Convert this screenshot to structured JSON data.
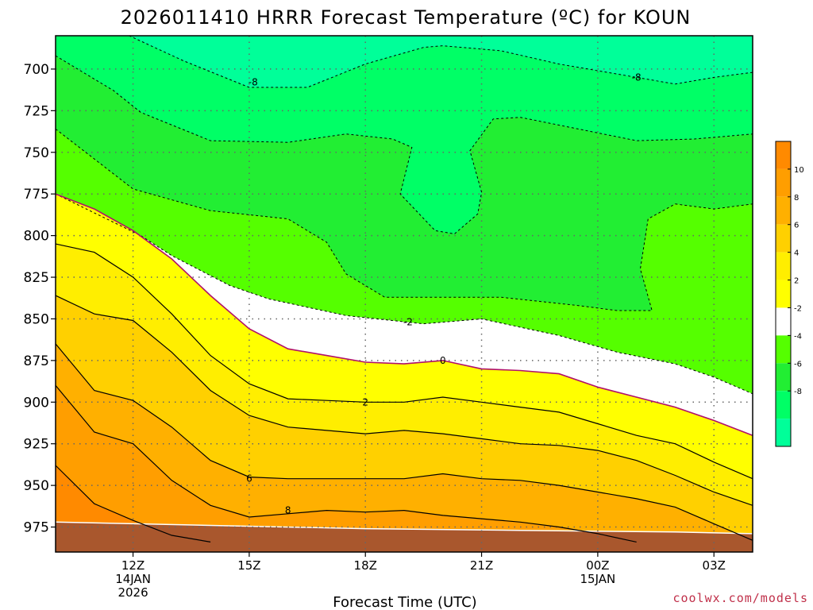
{
  "chart_data": {
    "type": "contour",
    "title": "2026011410 HRRR Forecast Temperature (ºC) for KOUN",
    "xlabel": "Forecast Time (UTC)",
    "ylabel": "",
    "y_ticks": [
      "700",
      "725",
      "750",
      "775",
      "800",
      "825",
      "850",
      "875",
      "900",
      "925",
      "950",
      "975"
    ],
    "y_values": [
      700,
      725,
      750,
      775,
      800,
      825,
      850,
      875,
      900,
      925,
      950,
      975
    ],
    "ylim": [
      680,
      990
    ],
    "y_inverted": true,
    "x_ticks": [
      {
        "label": "12Z",
        "sub": [
          "14JAN",
          "2026"
        ],
        "hour": 12
      },
      {
        "label": "15Z",
        "sub": [],
        "hour": 15
      },
      {
        "label": "18Z",
        "sub": [],
        "hour": 18
      },
      {
        "label": "21Z",
        "sub": [],
        "hour": 21
      },
      {
        "label": "00Z",
        "sub": [
          "15JAN"
        ],
        "hour": 24
      },
      {
        "label": "03Z",
        "sub": [],
        "hour": 27
      }
    ],
    "xlim": [
      10,
      28
    ],
    "grid": true,
    "colorbar": {
      "ticks": [
        "10",
        "8",
        "6",
        "4",
        "2",
        "-2",
        "-4",
        "-6",
        "-8"
      ],
      "bins": [
        {
          "range": "above 10",
          "color": "#ff8a00"
        },
        {
          "range": "8 to 10",
          "color": "#ff9e00"
        },
        {
          "range": "6 to 8",
          "color": "#ffb000"
        },
        {
          "range": "4 to 6",
          "color": "#ffd000"
        },
        {
          "range": "2 to 4",
          "color": "#ffee00"
        },
        {
          "range": "0 to 2",
          "color": "#ffff00"
        },
        {
          "range": "-2 to 0",
          "color": "#ffffff"
        },
        {
          "range": "-4 to -2",
          "color": "#55ff00"
        },
        {
          "range": "-6 to -4",
          "color": "#22ee33"
        },
        {
          "range": "-8 to -6",
          "color": "#00ff66"
        },
        {
          "range": "below -8",
          "color": "#00ff99"
        }
      ]
    },
    "contour_labels": [
      {
        "text": "-8",
        "hour": 15.1,
        "p": 708
      },
      {
        "text": "-8",
        "hour": 25.0,
        "p": 705
      },
      {
        "text": "-2",
        "hour": 19.1,
        "p": 852
      },
      {
        "text": "0",
        "hour": 20.0,
        "p": 875
      },
      {
        "text": "2",
        "hour": 18.0,
        "p": 900
      },
      {
        "text": "6",
        "hour": 15.0,
        "p": 946
      },
      {
        "text": "8",
        "hour": 16.0,
        "p": 965
      }
    ],
    "contours": [
      {
        "level": -8,
        "style": "dash",
        "points": [
          [
            10.3,
            680
          ],
          [
            11.9,
            680
          ],
          [
            13.3,
            695
          ],
          [
            15.0,
            711
          ],
          [
            16.5,
            711
          ],
          [
            18.0,
            697
          ],
          [
            19.5,
            687
          ],
          [
            20.0,
            686
          ],
          [
            21.5,
            689
          ],
          [
            23.0,
            697
          ],
          [
            24.5,
            703
          ],
          [
            26.0,
            709
          ],
          [
            27.0,
            705
          ],
          [
            28.0,
            702
          ]
        ]
      },
      {
        "level": -6,
        "style": "dash",
        "points": [
          [
            10.0,
            692
          ],
          [
            11.5,
            713
          ],
          [
            12.2,
            726
          ],
          [
            14.0,
            743
          ],
          [
            16.0,
            744
          ],
          [
            17.5,
            739
          ],
          [
            18.7,
            742
          ],
          [
            19.2,
            747
          ],
          [
            18.9,
            775
          ],
          [
            19.8,
            797
          ],
          [
            20.3,
            799
          ],
          [
            20.9,
            787
          ],
          [
            21.0,
            774
          ],
          [
            20.7,
            749
          ],
          [
            21.3,
            730
          ],
          [
            22.0,
            729
          ],
          [
            23.5,
            736
          ],
          [
            25.0,
            743
          ],
          [
            26.5,
            742
          ],
          [
            28.0,
            739
          ]
        ]
      },
      {
        "level": -4,
        "style": "dash",
        "points": [
          [
            10.0,
            736
          ],
          [
            12.0,
            772
          ],
          [
            14.0,
            785
          ],
          [
            16.0,
            790
          ],
          [
            17.0,
            804
          ],
          [
            17.5,
            823
          ],
          [
            18.5,
            837
          ],
          [
            20.0,
            837
          ],
          [
            21.5,
            837
          ],
          [
            23.5,
            842
          ],
          [
            24.5,
            845
          ],
          [
            25.4,
            845
          ],
          [
            25.1,
            820
          ],
          [
            25.3,
            790
          ],
          [
            26.0,
            781
          ],
          [
            27.0,
            784
          ],
          [
            28.0,
            781
          ]
        ]
      },
      {
        "level": -2,
        "style": "dash",
        "points": [
          [
            10.0,
            775
          ],
          [
            12.2,
            800
          ],
          [
            13.0,
            812
          ],
          [
            14.5,
            830
          ],
          [
            15.5,
            838
          ],
          [
            17.5,
            848
          ],
          [
            19.5,
            853
          ],
          [
            21.0,
            850
          ],
          [
            23.0,
            860
          ],
          [
            24.5,
            870
          ],
          [
            26.0,
            877
          ],
          [
            27.0,
            885
          ],
          [
            28.0,
            895
          ]
        ]
      },
      {
        "level": 0,
        "style": "magenta",
        "points": [
          [
            10.0,
            775
          ],
          [
            11.0,
            784
          ],
          [
            12.0,
            797
          ],
          [
            13.0,
            814
          ],
          [
            14.0,
            836
          ],
          [
            15.0,
            856
          ],
          [
            16.0,
            868
          ],
          [
            17.0,
            872
          ],
          [
            18.0,
            876
          ],
          [
            19.0,
            877
          ],
          [
            20.0,
            875
          ],
          [
            21.0,
            880
          ],
          [
            22.0,
            881
          ],
          [
            23.0,
            883
          ],
          [
            24.0,
            891
          ],
          [
            25.0,
            897
          ],
          [
            26.0,
            903
          ],
          [
            27.0,
            911
          ],
          [
            28.0,
            920
          ]
        ]
      },
      {
        "level": 2,
        "style": "solid",
        "points": [
          [
            10.0,
            805
          ],
          [
            11.0,
            810
          ],
          [
            12.0,
            825
          ],
          [
            13.0,
            847
          ],
          [
            14.0,
            872
          ],
          [
            15.0,
            889
          ],
          [
            16.0,
            898
          ],
          [
            17.0,
            899
          ],
          [
            18.0,
            900
          ],
          [
            19.0,
            900
          ],
          [
            20.0,
            897
          ],
          [
            21.0,
            900
          ],
          [
            22.0,
            903
          ],
          [
            23.0,
            906
          ],
          [
            24.0,
            913
          ],
          [
            25.0,
            920
          ],
          [
            26.0,
            925
          ],
          [
            27.0,
            936
          ],
          [
            28.0,
            946
          ]
        ]
      },
      {
        "level": 4,
        "style": "solid",
        "points": [
          [
            10.0,
            836
          ],
          [
            11.0,
            847
          ],
          [
            12.0,
            851
          ],
          [
            13.0,
            870
          ],
          [
            14.0,
            893
          ],
          [
            15.0,
            908
          ],
          [
            16.0,
            915
          ],
          [
            17.0,
            917
          ],
          [
            18.0,
            919
          ],
          [
            19.0,
            917
          ],
          [
            20.0,
            919
          ],
          [
            21.0,
            922
          ],
          [
            22.0,
            925
          ],
          [
            23.0,
            926
          ],
          [
            24.0,
            929
          ],
          [
            25.0,
            935
          ],
          [
            26.0,
            944
          ],
          [
            27.0,
            954
          ],
          [
            28.0,
            962
          ]
        ]
      },
      {
        "level": 6,
        "style": "solid",
        "points": [
          [
            10.0,
            865
          ],
          [
            11.0,
            893
          ],
          [
            12.0,
            899
          ],
          [
            13.0,
            915
          ],
          [
            14.0,
            935
          ],
          [
            15.0,
            945
          ],
          [
            16.0,
            946
          ],
          [
            17.0,
            946
          ],
          [
            18.0,
            946
          ],
          [
            19.0,
            946
          ],
          [
            20.0,
            943
          ],
          [
            21.0,
            946
          ],
          [
            22.0,
            947
          ],
          [
            23.0,
            950
          ],
          [
            24.0,
            954
          ],
          [
            25.0,
            958
          ],
          [
            26.0,
            963
          ],
          [
            27.0,
            973
          ],
          [
            28.0,
            983
          ]
        ]
      },
      {
        "level": 8,
        "style": "solid",
        "points": [
          [
            10.0,
            890
          ],
          [
            11.0,
            918
          ],
          [
            12.0,
            925
          ],
          [
            13.0,
            947
          ],
          [
            14.0,
            962
          ],
          [
            15.0,
            969
          ],
          [
            16.0,
            967
          ],
          [
            17.0,
            965
          ],
          [
            18.0,
            966
          ],
          [
            19.0,
            965
          ],
          [
            20.0,
            968
          ],
          [
            21.0,
            970
          ],
          [
            22.0,
            972
          ],
          [
            23.0,
            975
          ],
          [
            24.0,
            979
          ],
          [
            25.0,
            984
          ]
        ]
      },
      {
        "level": 10,
        "style": "solid",
        "points": [
          [
            10.0,
            938
          ],
          [
            11.0,
            961
          ],
          [
            12.0,
            971
          ],
          [
            13.0,
            980
          ],
          [
            14.0,
            984
          ]
        ]
      }
    ],
    "terrain": {
      "color": "#a9572d",
      "points": [
        [
          10.0,
          972
        ],
        [
          14.0,
          974
        ],
        [
          18.0,
          976
        ],
        [
          22.0,
          977
        ],
        [
          26.0,
          978
        ],
        [
          28.0,
          979
        ]
      ]
    },
    "credit": "coolwx.com/models",
    "credit_color": "#c0304a"
  }
}
